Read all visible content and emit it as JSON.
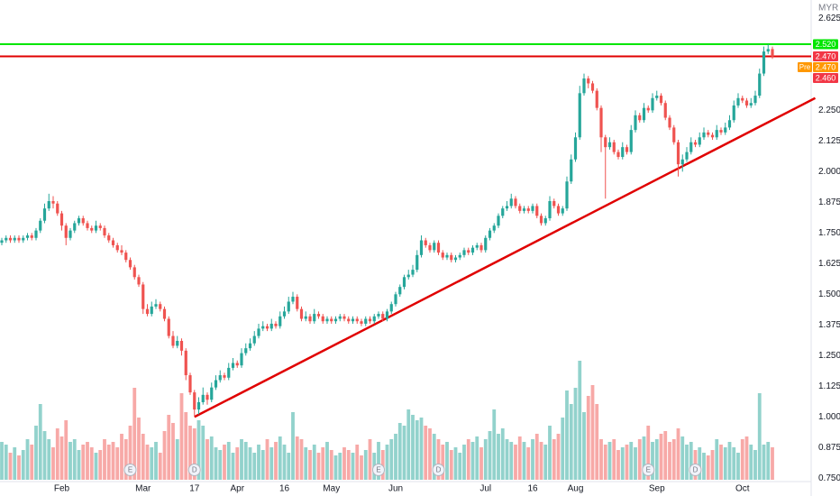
{
  "chart_data": {
    "type": "candlestick",
    "currency": "MYR",
    "ylim": [
      0.74,
      2.7
    ],
    "yticks": [
      {
        "value": 0.75,
        "label": "0.750"
      },
      {
        "value": 0.875,
        "label": "0.875"
      },
      {
        "value": 1.0,
        "label": "1.000"
      },
      {
        "value": 1.125,
        "label": "1.125"
      },
      {
        "value": 1.25,
        "label": "1.250"
      },
      {
        "value": 1.375,
        "label": "1.375"
      },
      {
        "value": 1.5,
        "label": "1.500"
      },
      {
        "value": 1.625,
        "label": "1.625"
      },
      {
        "value": 1.75,
        "label": "1.750"
      },
      {
        "value": 1.875,
        "label": "1.875"
      },
      {
        "value": 2.0,
        "label": "2.000"
      },
      {
        "value": 2.125,
        "label": "2.125"
      },
      {
        "value": 2.25,
        "label": "2.250"
      },
      {
        "value": 2.625,
        "label": "2.625"
      }
    ],
    "xticks": [
      {
        "value": 14,
        "label": "Feb"
      },
      {
        "value": 33,
        "label": "Mar"
      },
      {
        "value": 45,
        "label": "17"
      },
      {
        "value": 55,
        "label": "Apr"
      },
      {
        "value": 66,
        "label": "16"
      },
      {
        "value": 77,
        "label": "May"
      },
      {
        "value": 92,
        "label": "Jun"
      },
      {
        "value": 113,
        "label": "Jul"
      },
      {
        "value": 124,
        "label": "16"
      },
      {
        "value": 134,
        "label": "Aug"
      },
      {
        "value": 153,
        "label": "Sep"
      },
      {
        "value": 173,
        "label": "Oct"
      }
    ],
    "grid": false,
    "up_color": "#26a69a",
    "down_color": "#ef5350",
    "candles": [
      [
        1.71,
        1.73,
        1.7,
        1.72
      ],
      [
        1.72,
        1.74,
        1.71,
        1.73
      ],
      [
        1.73,
        1.74,
        1.71,
        1.72
      ],
      [
        1.72,
        1.74,
        1.71,
        1.73
      ],
      [
        1.73,
        1.74,
        1.71,
        1.72
      ],
      [
        1.72,
        1.74,
        1.71,
        1.73
      ],
      [
        1.73,
        1.75,
        1.72,
        1.74
      ],
      [
        1.74,
        1.75,
        1.72,
        1.73
      ],
      [
        1.73,
        1.77,
        1.72,
        1.76
      ],
      [
        1.76,
        1.81,
        1.75,
        1.8
      ],
      [
        1.8,
        1.87,
        1.79,
        1.85
      ],
      [
        1.85,
        1.91,
        1.84,
        1.88
      ],
      [
        1.88,
        1.9,
        1.85,
        1.87
      ],
      [
        1.87,
        1.88,
        1.82,
        1.83
      ],
      [
        1.83,
        1.84,
        1.76,
        1.78
      ],
      [
        1.78,
        1.79,
        1.7,
        1.73
      ],
      [
        1.73,
        1.77,
        1.72,
        1.76
      ],
      [
        1.76,
        1.8,
        1.75,
        1.79
      ],
      [
        1.79,
        1.82,
        1.78,
        1.81
      ],
      [
        1.81,
        1.82,
        1.78,
        1.79
      ],
      [
        1.79,
        1.8,
        1.76,
        1.77
      ],
      [
        1.77,
        1.78,
        1.75,
        1.76
      ],
      [
        1.76,
        1.8,
        1.75,
        1.78
      ],
      [
        1.78,
        1.79,
        1.76,
        1.77
      ],
      [
        1.77,
        1.78,
        1.73,
        1.74
      ],
      [
        1.74,
        1.75,
        1.71,
        1.72
      ],
      [
        1.72,
        1.73,
        1.69,
        1.7
      ],
      [
        1.7,
        1.71,
        1.67,
        1.68
      ],
      [
        1.68,
        1.7,
        1.66,
        1.67
      ],
      [
        1.67,
        1.68,
        1.63,
        1.64
      ],
      [
        1.64,
        1.65,
        1.6,
        1.61
      ],
      [
        1.61,
        1.62,
        1.56,
        1.57
      ],
      [
        1.57,
        1.58,
        1.53,
        1.54
      ],
      [
        1.54,
        1.55,
        1.42,
        1.44
      ],
      [
        1.44,
        1.46,
        1.41,
        1.42
      ],
      [
        1.42,
        1.47,
        1.41,
        1.45
      ],
      [
        1.45,
        1.48,
        1.44,
        1.46
      ],
      [
        1.46,
        1.47,
        1.43,
        1.44
      ],
      [
        1.44,
        1.45,
        1.39,
        1.4
      ],
      [
        1.4,
        1.41,
        1.32,
        1.33
      ],
      [
        1.33,
        1.35,
        1.28,
        1.29
      ],
      [
        1.29,
        1.33,
        1.28,
        1.31
      ],
      [
        1.31,
        1.32,
        1.25,
        1.27
      ],
      [
        1.27,
        1.28,
        1.15,
        1.17
      ],
      [
        1.17,
        1.18,
        1.09,
        1.1
      ],
      [
        1.1,
        1.11,
        1.0,
        1.03
      ],
      [
        1.03,
        1.08,
        1.01,
        1.06
      ],
      [
        1.06,
        1.12,
        1.05,
        1.09
      ],
      [
        1.09,
        1.1,
        1.05,
        1.07
      ],
      [
        1.07,
        1.14,
        1.06,
        1.12
      ],
      [
        1.12,
        1.17,
        1.11,
        1.15
      ],
      [
        1.15,
        1.19,
        1.14,
        1.17
      ],
      [
        1.17,
        1.18,
        1.15,
        1.16
      ],
      [
        1.16,
        1.22,
        1.15,
        1.2
      ],
      [
        1.2,
        1.24,
        1.19,
        1.22
      ],
      [
        1.22,
        1.23,
        1.2,
        1.21
      ],
      [
        1.21,
        1.28,
        1.2,
        1.26
      ],
      [
        1.26,
        1.3,
        1.25,
        1.28
      ],
      [
        1.28,
        1.32,
        1.27,
        1.3
      ],
      [
        1.3,
        1.35,
        1.29,
        1.33
      ],
      [
        1.33,
        1.38,
        1.32,
        1.36
      ],
      [
        1.36,
        1.39,
        1.35,
        1.37
      ],
      [
        1.37,
        1.38,
        1.35,
        1.36
      ],
      [
        1.36,
        1.4,
        1.35,
        1.38
      ],
      [
        1.38,
        1.39,
        1.36,
        1.37
      ],
      [
        1.37,
        1.43,
        1.36,
        1.41
      ],
      [
        1.41,
        1.45,
        1.4,
        1.43
      ],
      [
        1.43,
        1.49,
        1.42,
        1.47
      ],
      [
        1.47,
        1.51,
        1.46,
        1.49
      ],
      [
        1.49,
        1.5,
        1.43,
        1.44
      ],
      [
        1.44,
        1.45,
        1.39,
        1.4
      ],
      [
        1.4,
        1.43,
        1.39,
        1.41
      ],
      [
        1.41,
        1.42,
        1.38,
        1.39
      ],
      [
        1.39,
        1.44,
        1.38,
        1.42
      ],
      [
        1.42,
        1.43,
        1.4,
        1.41
      ],
      [
        1.41,
        1.42,
        1.38,
        1.39
      ],
      [
        1.39,
        1.41,
        1.38,
        1.4
      ],
      [
        1.4,
        1.41,
        1.38,
        1.39
      ],
      [
        1.39,
        1.41,
        1.38,
        1.4
      ],
      [
        1.4,
        1.42,
        1.39,
        1.41
      ],
      [
        1.41,
        1.42,
        1.39,
        1.4
      ],
      [
        1.4,
        1.41,
        1.38,
        1.39
      ],
      [
        1.39,
        1.41,
        1.38,
        1.4
      ],
      [
        1.4,
        1.41,
        1.38,
        1.39
      ],
      [
        1.39,
        1.4,
        1.37,
        1.38
      ],
      [
        1.38,
        1.41,
        1.37,
        1.4
      ],
      [
        1.4,
        1.41,
        1.38,
        1.39
      ],
      [
        1.39,
        1.42,
        1.38,
        1.41
      ],
      [
        1.41,
        1.43,
        1.4,
        1.42
      ],
      [
        1.42,
        1.43,
        1.39,
        1.4
      ],
      [
        1.4,
        1.44,
        1.39,
        1.43
      ],
      [
        1.43,
        1.47,
        1.42,
        1.46
      ],
      [
        1.46,
        1.51,
        1.45,
        1.5
      ],
      [
        1.5,
        1.54,
        1.49,
        1.53
      ],
      [
        1.53,
        1.58,
        1.52,
        1.57
      ],
      [
        1.57,
        1.6,
        1.56,
        1.58
      ],
      [
        1.58,
        1.62,
        1.57,
        1.6
      ],
      [
        1.6,
        1.68,
        1.59,
        1.66
      ],
      [
        1.66,
        1.74,
        1.65,
        1.72
      ],
      [
        1.72,
        1.73,
        1.69,
        1.7
      ],
      [
        1.7,
        1.71,
        1.67,
        1.68
      ],
      [
        1.68,
        1.72,
        1.67,
        1.71
      ],
      [
        1.71,
        1.72,
        1.66,
        1.67
      ],
      [
        1.67,
        1.68,
        1.64,
        1.65
      ],
      [
        1.65,
        1.67,
        1.64,
        1.66
      ],
      [
        1.66,
        1.67,
        1.63,
        1.64
      ],
      [
        1.64,
        1.66,
        1.63,
        1.65
      ],
      [
        1.65,
        1.67,
        1.64,
        1.66
      ],
      [
        1.66,
        1.69,
        1.65,
        1.68
      ],
      [
        1.68,
        1.69,
        1.66,
        1.67
      ],
      [
        1.67,
        1.7,
        1.66,
        1.69
      ],
      [
        1.69,
        1.71,
        1.68,
        1.7
      ],
      [
        1.7,
        1.71,
        1.67,
        1.68
      ],
      [
        1.68,
        1.74,
        1.67,
        1.73
      ],
      [
        1.73,
        1.77,
        1.72,
        1.76
      ],
      [
        1.76,
        1.79,
        1.75,
        1.78
      ],
      [
        1.78,
        1.83,
        1.77,
        1.82
      ],
      [
        1.82,
        1.86,
        1.81,
        1.85
      ],
      [
        1.85,
        1.88,
        1.84,
        1.86
      ],
      [
        1.86,
        1.91,
        1.85,
        1.89
      ],
      [
        1.89,
        1.9,
        1.85,
        1.86
      ],
      [
        1.86,
        1.87,
        1.83,
        1.84
      ],
      [
        1.84,
        1.86,
        1.83,
        1.85
      ],
      [
        1.85,
        1.86,
        1.83,
        1.84
      ],
      [
        1.84,
        1.87,
        1.83,
        1.86
      ],
      [
        1.86,
        1.87,
        1.81,
        1.82
      ],
      [
        1.82,
        1.83,
        1.78,
        1.79
      ],
      [
        1.79,
        1.82,
        1.78,
        1.81
      ],
      [
        1.81,
        1.9,
        1.8,
        1.88
      ],
      [
        1.88,
        1.89,
        1.85,
        1.86
      ],
      [
        1.86,
        1.87,
        1.82,
        1.83
      ],
      [
        1.83,
        1.86,
        1.82,
        1.85
      ],
      [
        1.85,
        1.98,
        1.84,
        1.96
      ],
      [
        1.96,
        2.07,
        1.95,
        2.05
      ],
      [
        2.05,
        2.16,
        2.04,
        2.14
      ],
      [
        2.14,
        2.35,
        2.13,
        2.32
      ],
      [
        2.32,
        2.4,
        2.31,
        2.38
      ],
      [
        2.38,
        2.39,
        2.34,
        2.36
      ],
      [
        2.36,
        2.37,
        2.32,
        2.33
      ],
      [
        2.33,
        2.34,
        2.25,
        2.26
      ],
      [
        2.26,
        2.27,
        2.08,
        2.14
      ],
      [
        2.14,
        2.15,
        1.89,
        2.1
      ],
      [
        2.1,
        2.14,
        2.09,
        2.12
      ],
      [
        2.12,
        2.13,
        2.07,
        2.08
      ],
      [
        2.08,
        2.09,
        2.05,
        2.06
      ],
      [
        2.06,
        2.12,
        2.05,
        2.1
      ],
      [
        2.1,
        2.11,
        2.07,
        2.08
      ],
      [
        2.08,
        2.19,
        2.07,
        2.17
      ],
      [
        2.17,
        2.25,
        2.16,
        2.23
      ],
      [
        2.23,
        2.24,
        2.2,
        2.21
      ],
      [
        2.21,
        2.28,
        2.2,
        2.26
      ],
      [
        2.26,
        2.27,
        2.24,
        2.25
      ],
      [
        2.25,
        2.32,
        2.24,
        2.3
      ],
      [
        2.3,
        2.33,
        2.29,
        2.31
      ],
      [
        2.31,
        2.32,
        2.27,
        2.28
      ],
      [
        2.28,
        2.29,
        2.21,
        2.22
      ],
      [
        2.22,
        2.23,
        2.17,
        2.18
      ],
      [
        2.18,
        2.19,
        2.11,
        2.12
      ],
      [
        2.12,
        2.13,
        1.98,
        2.03
      ],
      [
        2.03,
        2.07,
        2.0,
        2.05
      ],
      [
        2.05,
        2.1,
        2.04,
        2.08
      ],
      [
        2.08,
        2.14,
        2.07,
        2.12
      ],
      [
        2.12,
        2.13,
        2.1,
        2.11
      ],
      [
        2.11,
        2.16,
        2.1,
        2.14
      ],
      [
        2.14,
        2.18,
        2.13,
        2.16
      ],
      [
        2.16,
        2.17,
        2.14,
        2.15
      ],
      [
        2.15,
        2.16,
        2.13,
        2.14
      ],
      [
        2.14,
        2.19,
        2.13,
        2.17
      ],
      [
        2.17,
        2.18,
        2.15,
        2.16
      ],
      [
        2.16,
        2.2,
        2.15,
        2.18
      ],
      [
        2.18,
        2.23,
        2.17,
        2.21
      ],
      [
        2.21,
        2.29,
        2.2,
        2.27
      ],
      [
        2.27,
        2.32,
        2.26,
        2.3
      ],
      [
        2.3,
        2.31,
        2.28,
        2.29
      ],
      [
        2.29,
        2.3,
        2.26,
        2.27
      ],
      [
        2.27,
        2.3,
        2.26,
        2.28
      ],
      [
        2.28,
        2.33,
        2.27,
        2.31
      ],
      [
        2.31,
        2.42,
        2.3,
        2.4
      ],
      [
        2.4,
        2.51,
        2.39,
        2.49
      ],
      [
        2.49,
        2.52,
        2.48,
        2.5
      ],
      [
        2.5,
        2.51,
        2.46,
        2.47
      ]
    ],
    "volume_lim": [
      0,
      100
    ],
    "volumes": [
      28,
      26,
      20,
      24,
      18,
      22,
      30,
      26,
      40,
      56,
      36,
      30,
      24,
      38,
      32,
      44,
      28,
      30,
      22,
      26,
      28,
      24,
      20,
      22,
      30,
      26,
      28,
      24,
      34,
      30,
      40,
      68,
      46,
      34,
      26,
      24,
      28,
      20,
      36,
      48,
      42,
      30,
      64,
      50,
      40,
      38,
      44,
      40,
      30,
      32,
      24,
      22,
      26,
      28,
      20,
      24,
      30,
      28,
      24,
      20,
      26,
      22,
      30,
      24,
      28,
      32,
      26,
      20,
      50,
      32,
      30,
      24,
      22,
      26,
      20,
      24,
      28,
      22,
      18,
      20,
      24,
      22,
      20,
      26,
      18,
      22,
      30,
      20,
      28,
      22,
      26,
      30,
      34,
      42,
      40,
      52,
      48,
      44,
      46,
      40,
      38,
      34,
      30,
      26,
      28,
      22,
      24,
      20,
      26,
      30,
      28,
      32,
      24,
      30,
      36,
      52,
      34,
      38,
      30,
      28,
      26,
      32,
      28,
      24,
      30,
      34,
      28,
      26,
      40,
      30,
      34,
      46,
      66,
      56,
      68,
      88,
      50,
      62,
      70,
      56,
      30,
      26,
      28,
      30,
      22,
      24,
      26,
      28,
      24,
      30,
      32,
      40,
      28,
      30,
      34,
      36,
      28,
      30,
      38,
      32,
      26,
      28,
      22,
      24,
      20,
      18,
      22,
      30,
      26,
      24,
      28,
      24,
      20,
      30,
      32,
      26,
      22,
      64,
      26,
      28,
      24
    ],
    "events": [
      {
        "label": "E",
        "index": 30
      },
      {
        "label": "D",
        "index": 45
      },
      {
        "label": "E",
        "index": 88
      },
      {
        "label": "D",
        "index": 102
      },
      {
        "label": "E",
        "index": 151
      },
      {
        "label": "D",
        "index": 162
      }
    ],
    "levels": [
      {
        "value": 2.52,
        "color": "#00e600"
      },
      {
        "value": 2.47,
        "color": "#e00000"
      }
    ],
    "trendline": {
      "x": [
        45,
        190
      ],
      "y": [
        1.0,
        2.3
      ],
      "color": "#e00000"
    },
    "price_tags": [
      {
        "value": 2.52,
        "label": "2.520",
        "color": "#00e600"
      },
      {
        "value": 2.47,
        "label": "2.470",
        "color": "#f23645"
      },
      {
        "value": 2.47,
        "label": "2.470",
        "prefix": "Pre",
        "color": "#ff9800"
      },
      {
        "value": 2.46,
        "label": "2.460",
        "color": "#f23645"
      }
    ]
  }
}
